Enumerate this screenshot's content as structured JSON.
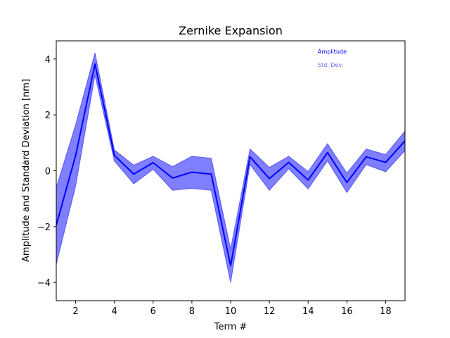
{
  "chart_data": {
    "type": "line",
    "title": "Zernike Expansion",
    "xlabel": "Term #",
    "ylabel": "Amplitude and Standard Deviation [nm]",
    "xlim": [
      1,
      19
    ],
    "ylim": [
      -4.65,
      4.65
    ],
    "xticks": [
      2,
      4,
      6,
      8,
      10,
      12,
      14,
      16,
      18
    ],
    "yticks": [
      -4,
      -2,
      0,
      2,
      4
    ],
    "grid": false,
    "legend_position": "top-right",
    "x": [
      1,
      2,
      3,
      4,
      5,
      6,
      7,
      8,
      9,
      10,
      11,
      12,
      13,
      14,
      15,
      16,
      17,
      18,
      19
    ],
    "series": [
      {
        "name": "Amplitude",
        "color": "#0000ff",
        "values": [
          -1.95,
          0.55,
          3.82,
          0.55,
          -0.12,
          0.29,
          -0.26,
          -0.05,
          -0.12,
          -3.4,
          0.5,
          -0.28,
          0.3,
          -0.33,
          0.65,
          -0.42,
          0.5,
          0.3,
          1.07
        ]
      },
      {
        "name": "Std. Dev.",
        "color": "#6666ff",
        "type": "band",
        "upper": [
          -0.6,
          1.65,
          4.22,
          0.75,
          0.2,
          0.52,
          0.15,
          0.52,
          0.45,
          -2.8,
          0.78,
          0.12,
          0.52,
          -0.03,
          0.97,
          -0.08,
          0.78,
          0.58,
          1.42
        ],
        "lower": [
          -3.35,
          -0.55,
          3.42,
          0.35,
          -0.47,
          0.05,
          -0.7,
          -0.63,
          -0.7,
          -4.0,
          0.22,
          -0.7,
          0.07,
          -0.65,
          0.35,
          -0.78,
          0.22,
          -0.04,
          0.72
        ]
      }
    ]
  }
}
